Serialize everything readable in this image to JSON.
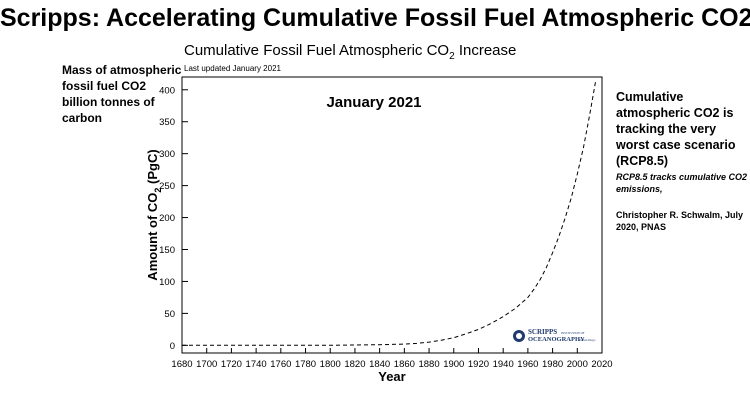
{
  "main_title": "Scripps: Accelerating Cumulative Fossil Fuel Atmospheric CO2",
  "left_note": "Mass of atmospheric fossil fuel CO2 billion tonnes of carbon",
  "right_note": {
    "main": "Cumulative atmospheric CO2 is tracking the very worst case scenario (RCP8.5)",
    "sub": "RCP8.5 tracks cumulative CO2 emissions,",
    "citation": "Christopher R. Schwalm, July 2020, PNAS"
  },
  "logo": {
    "name": "SCRIPPS",
    "small_caps": "INSTITUTION OF",
    "subname": "OCEANOGRAPHY",
    "tag": "UC San Diego"
  },
  "chart_data": {
    "type": "line",
    "title": "Cumulative Fossil Fuel Atmospheric CO",
    "title_subscript": "2",
    "title_suffix": " Increase",
    "updated": "Last updated January 2021",
    "annotation": "January 2021",
    "xlabel": "Year",
    "ylabel_pre": "Amount of CO",
    "ylabel_sub": "2",
    "ylabel_post": " (PgC)",
    "xlim": [
      1680,
      2020
    ],
    "ylim": [
      -12,
      420
    ],
    "x_ticks": [
      1680,
      1700,
      1720,
      1740,
      1760,
      1780,
      1800,
      1820,
      1840,
      1860,
      1880,
      1900,
      1920,
      1940,
      1960,
      1980,
      2000,
      2020
    ],
    "y_ticks": [
      0,
      50,
      100,
      150,
      200,
      250,
      300,
      350,
      400
    ],
    "grid": false,
    "series": [
      {
        "line_style": "dashed",
        "x": [
          1680,
          1700,
          1750,
          1800,
          1820,
          1840,
          1860,
          1870,
          1880,
          1890,
          1900,
          1910,
          1920,
          1930,
          1940,
          1950,
          1960,
          1965,
          1970,
          1975,
          1980,
          1985,
          1990,
          1995,
          2000,
          2005,
          2010,
          2015
        ],
        "y": [
          0,
          0,
          0,
          0,
          0.5,
          1,
          2,
          3,
          5,
          8,
          12,
          18,
          25,
          34,
          45,
          58,
          75,
          88,
          103,
          122,
          145,
          170,
          198,
          230,
          268,
          310,
          360,
          415
        ]
      }
    ]
  }
}
